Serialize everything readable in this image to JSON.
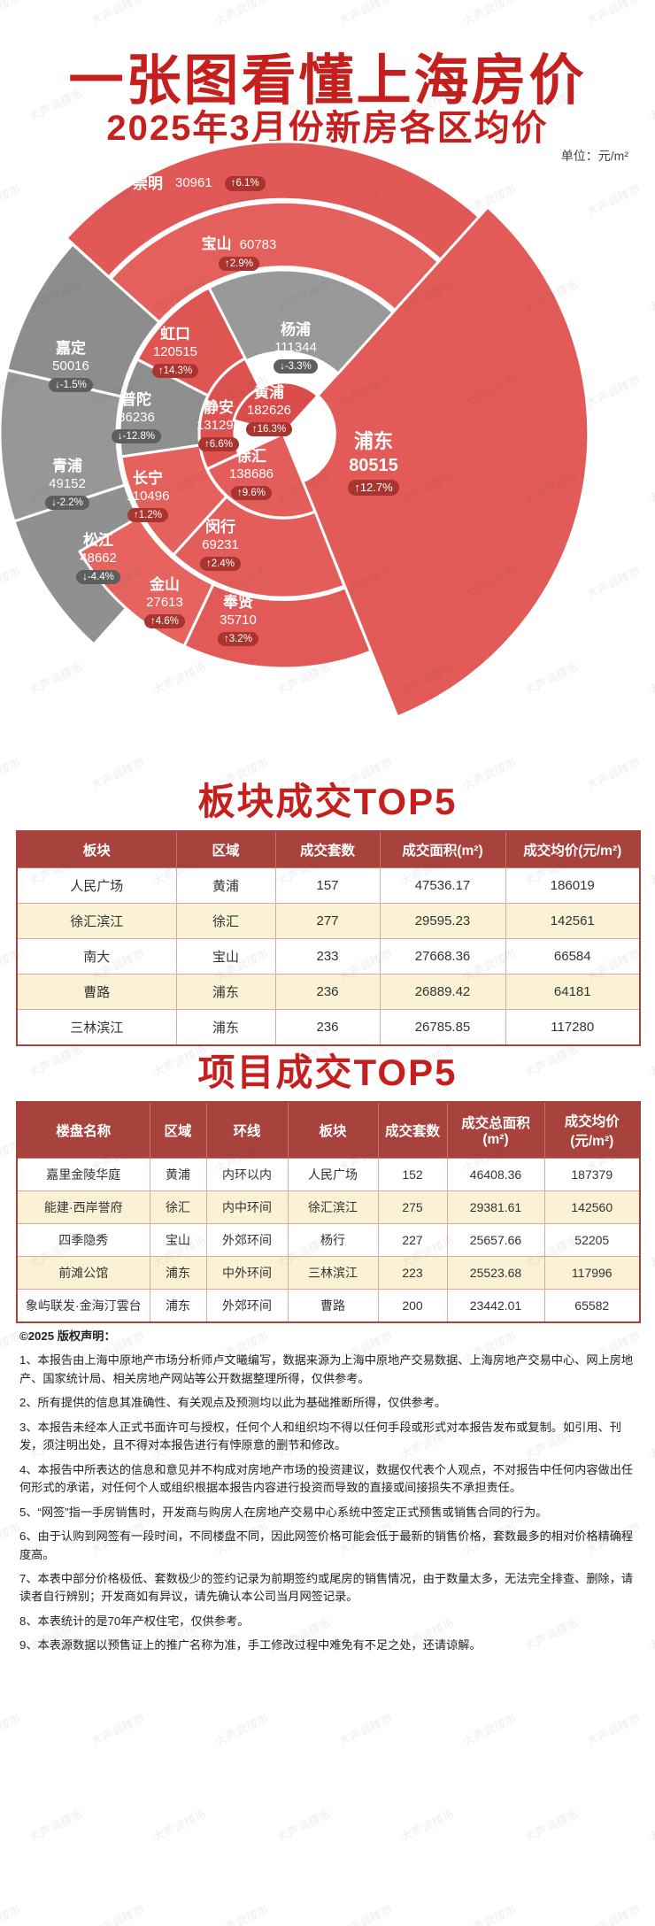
{
  "page": {
    "title": "一张图看懂上海房价",
    "subtitle": "2025年3月份新房各区均价",
    "unit_note": "单位：元/m²",
    "watermark": "大声说楼市"
  },
  "colors": {
    "brand_red": "#c5201d",
    "segment_up_red": "#e25b58",
    "segment_down_grey": "#929292",
    "badge_red": "#a93430",
    "badge_grey": "#5e5e5e",
    "table_header_bg": "#a8423d",
    "table_stripe": "#fbf2d5"
  },
  "chart_data": {
    "type": "pie",
    "variant": "sunburst",
    "title": "2025年3月份新房各区均价",
    "unit": "元/m²",
    "legend_note": "红色=上涨，灰色=下跌",
    "districts": [
      {
        "name": "崇明",
        "price": 30961,
        "change": "↑6.1%",
        "trend": "up"
      },
      {
        "name": "宝山",
        "price": 60783,
        "change": "↑2.9%",
        "trend": "up"
      },
      {
        "name": "杨浦",
        "price": 111344,
        "change": "↓-3.3%",
        "trend": "down"
      },
      {
        "name": "虹口",
        "price": 120515,
        "change": "↑14.3%",
        "trend": "up"
      },
      {
        "name": "嘉定",
        "price": 50016,
        "change": "↓-1.5%",
        "trend": "down"
      },
      {
        "name": "普陀",
        "price": 86236,
        "change": "↓-12.8%",
        "trend": "down"
      },
      {
        "name": "静安",
        "price": 131295,
        "change": "↑6.6%",
        "trend": "up"
      },
      {
        "name": "黄浦",
        "price": 182626,
        "change": "↑16.3%",
        "trend": "up"
      },
      {
        "name": "浦东",
        "price": 80515,
        "change": "↑12.7%",
        "trend": "up"
      },
      {
        "name": "青浦",
        "price": 49152,
        "change": "↓-2.2%",
        "trend": "down"
      },
      {
        "name": "长宁",
        "price": 110496,
        "change": "↑1.2%",
        "trend": "up"
      },
      {
        "name": "徐汇",
        "price": 138686,
        "change": "↑9.6%",
        "trend": "up"
      },
      {
        "name": "松江",
        "price": 48662,
        "change": "↓-4.4%",
        "trend": "down"
      },
      {
        "name": "闵行",
        "price": 69231,
        "change": "↑2.4%",
        "trend": "up"
      },
      {
        "name": "金山",
        "price": 27613,
        "change": "↑4.6%",
        "trend": "up"
      },
      {
        "name": "奉贤",
        "price": 35710,
        "change": "↑3.2%",
        "trend": "up"
      }
    ]
  },
  "tables": {
    "plate": {
      "title": "板块成交TOP5",
      "headers": [
        "板块",
        "区域",
        "成交套数",
        "成交面积(m²)",
        "成交均价(元/m²)"
      ],
      "rows": [
        [
          "人民广场",
          "黄浦",
          "157",
          "47536.17",
          "186019"
        ],
        [
          "徐汇滨江",
          "徐汇",
          "277",
          "29595.23",
          "142561"
        ],
        [
          "南大",
          "宝山",
          "233",
          "27668.36",
          "66584"
        ],
        [
          "曹路",
          "浦东",
          "236",
          "26889.42",
          "64181"
        ],
        [
          "三林滨江",
          "浦东",
          "236",
          "26785.85",
          "117280"
        ]
      ]
    },
    "project": {
      "title": "项目成交TOP5",
      "headers": [
        "楼盘名称",
        "区域",
        "环线",
        "板块",
        "成交套数",
        "成交总面积(m²)",
        "成交均价(元/m²)"
      ],
      "rows": [
        [
          "嘉里金陵华庭",
          "黄浦",
          "内环以内",
          "人民广场",
          "152",
          "46408.36",
          "187379"
        ],
        [
          "能建·西岸誉府",
          "徐汇",
          "内中环间",
          "徐汇滨江",
          "275",
          "29381.61",
          "142560"
        ],
        [
          "四季隐秀",
          "宝山",
          "外郊环间",
          "杨行",
          "227",
          "25657.66",
          "52205"
        ],
        [
          "前滩公馆",
          "浦东",
          "中外环间",
          "三林滨江",
          "223",
          "25523.68",
          "117996"
        ],
        [
          "象屿联发·金海汀雲台",
          "浦东",
          "外郊环间",
          "曹路",
          "200",
          "23442.01",
          "65582"
        ]
      ]
    }
  },
  "disclaimer": {
    "heading": "©2025 版权声明：",
    "items": [
      "1、本报告由上海中原地产市场分析师卢文曦编写，数据来源为上海中原地产交易数据、上海房地产交易中心、网上房地产、国家统计局、相关房地产网站等公开数据整理所得，仅供参考。",
      "2、所有提供的信息其准确性、有关观点及预测均以此为基础推断所得，仅供参考。",
      "3、本报告未经本人正式书面许可与授权，任何个人和组织均不得以任何手段或形式对本报告发布或复制。如引用、刊发，须注明出处，且不得对本报告进行有悖原意的删节和修改。",
      "4、本报告中所表达的信息和意见并不构成对房地产市场的投资建议，数据仅代表个人观点，不对报告中任何内容做出任何形式的承诺，对任何个人或组织根据本报告内容进行投资而导致的直接或间接损失不承担责任。",
      "5、“网签”指一手房销售时，开发商与购房人在房地产交易中心系统中签定正式预售或销售合同的行为。",
      "6、由于认购到网签有一段时间，不同楼盘不同，因此网签价格可能会低于最新的销售价格，套数最多的相对价格精确程度高。",
      "7、本表中部分价格极低、套数极少的签约记录为前期签约或尾房的销售情况，由于数量太多，无法完全排查、删除，请读者自行辨别；开发商如有异议，请先确认本公司当月网签记录。",
      "8、本表统计的是70年产权住宅，仅供参考。",
      "9、本表源数据以预售证上的推广名称为准，手工修改过程中难免有不足之处，还请谅解。"
    ]
  }
}
